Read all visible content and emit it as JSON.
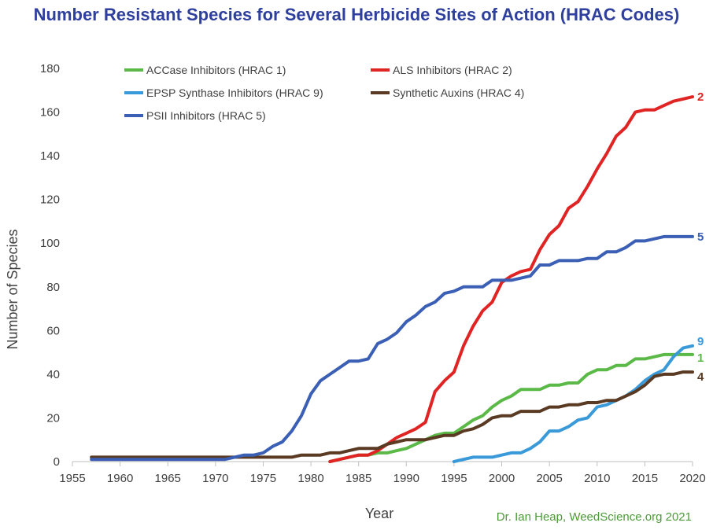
{
  "chart_data": {
    "type": "line",
    "title": "Number Resistant Species for Several Herbicide Sites of Action (HRAC Codes)",
    "xlabel": "Year",
    "ylabel": "Number of Species",
    "xlim": [
      1955,
      2020
    ],
    "ylim": [
      0,
      180
    ],
    "xticks": [
      1955,
      1960,
      1965,
      1970,
      1975,
      1980,
      1985,
      1990,
      1995,
      2000,
      2005,
      2010,
      2015,
      2020
    ],
    "yticks": [
      0,
      20,
      40,
      60,
      80,
      100,
      120,
      140,
      160,
      180
    ],
    "grid": false,
    "legend_position": "top",
    "credit": "Dr. Ian Heap, WeedScience.org 2021",
    "series": [
      {
        "name": "ACCase Inhibitors (HRAC 1)",
        "end_label": "1",
        "color": "#5ab947",
        "points": [
          [
            1982,
            0
          ],
          [
            1983,
            1
          ],
          [
            1984,
            2
          ],
          [
            1985,
            3
          ],
          [
            1986,
            3
          ],
          [
            1987,
            4
          ],
          [
            1988,
            4
          ],
          [
            1989,
            5
          ],
          [
            1990,
            6
          ],
          [
            1991,
            8
          ],
          [
            1992,
            10
          ],
          [
            1993,
            12
          ],
          [
            1994,
            13
          ],
          [
            1995,
            13
          ],
          [
            1996,
            16
          ],
          [
            1997,
            19
          ],
          [
            1998,
            21
          ],
          [
            1999,
            25
          ],
          [
            2000,
            28
          ],
          [
            2001,
            30
          ],
          [
            2002,
            33
          ],
          [
            2003,
            33
          ],
          [
            2004,
            33
          ],
          [
            2005,
            35
          ],
          [
            2006,
            35
          ],
          [
            2007,
            36
          ],
          [
            2008,
            36
          ],
          [
            2009,
            40
          ],
          [
            2010,
            42
          ],
          [
            2011,
            42
          ],
          [
            2012,
            44
          ],
          [
            2013,
            44
          ],
          [
            2014,
            47
          ],
          [
            2015,
            47
          ],
          [
            2016,
            48
          ],
          [
            2017,
            49
          ],
          [
            2018,
            49
          ],
          [
            2019,
            49
          ],
          [
            2020,
            49
          ]
        ]
      },
      {
        "name": "ALS Inhibitors (HRAC 2)",
        "end_label": "2",
        "color": "#e02424",
        "points": [
          [
            1982,
            0
          ],
          [
            1983,
            1
          ],
          [
            1984,
            2
          ],
          [
            1985,
            3
          ],
          [
            1986,
            3
          ],
          [
            1987,
            5
          ],
          [
            1988,
            8
          ],
          [
            1989,
            11
          ],
          [
            1990,
            13
          ],
          [
            1991,
            15
          ],
          [
            1992,
            18
          ],
          [
            1993,
            32
          ],
          [
            1994,
            37
          ],
          [
            1995,
            41
          ],
          [
            1996,
            53
          ],
          [
            1997,
            62
          ],
          [
            1998,
            69
          ],
          [
            1999,
            73
          ],
          [
            2000,
            82
          ],
          [
            2001,
            85
          ],
          [
            2002,
            87
          ],
          [
            2003,
            88
          ],
          [
            2004,
            97
          ],
          [
            2005,
            104
          ],
          [
            2006,
            108
          ],
          [
            2007,
            116
          ],
          [
            2008,
            119
          ],
          [
            2009,
            126
          ],
          [
            2010,
            134
          ],
          [
            2011,
            141
          ],
          [
            2012,
            149
          ],
          [
            2013,
            153
          ],
          [
            2014,
            160
          ],
          [
            2015,
            161
          ],
          [
            2016,
            161
          ],
          [
            2017,
            163
          ],
          [
            2018,
            165
          ],
          [
            2019,
            166
          ],
          [
            2020,
            167
          ]
        ]
      },
      {
        "name": "EPSP Synthase Inhibitors (HRAC 9)",
        "end_label": "9",
        "color": "#3a9ad9",
        "points": [
          [
            1995,
            0
          ],
          [
            1996,
            1
          ],
          [
            1997,
            2
          ],
          [
            1998,
            2
          ],
          [
            1999,
            2
          ],
          [
            2000,
            3
          ],
          [
            2001,
            4
          ],
          [
            2002,
            4
          ],
          [
            2003,
            6
          ],
          [
            2004,
            9
          ],
          [
            2005,
            14
          ],
          [
            2006,
            14
          ],
          [
            2007,
            16
          ],
          [
            2008,
            19
          ],
          [
            2009,
            20
          ],
          [
            2010,
            25
          ],
          [
            2011,
            26
          ],
          [
            2012,
            28
          ],
          [
            2013,
            30
          ],
          [
            2014,
            33
          ],
          [
            2015,
            37
          ],
          [
            2016,
            40
          ],
          [
            2017,
            42
          ],
          [
            2018,
            48
          ],
          [
            2019,
            52
          ],
          [
            2020,
            53
          ]
        ]
      },
      {
        "name": "Synthetic Auxins (HRAC 4)",
        "end_label": "4",
        "color": "#5a3a22",
        "points": [
          [
            1957,
            2
          ],
          [
            1960,
            2
          ],
          [
            1965,
            2
          ],
          [
            1970,
            2
          ],
          [
            1975,
            2
          ],
          [
            1978,
            2
          ],
          [
            1979,
            3
          ],
          [
            1980,
            3
          ],
          [
            1981,
            3
          ],
          [
            1982,
            4
          ],
          [
            1983,
            4
          ],
          [
            1984,
            5
          ],
          [
            1985,
            6
          ],
          [
            1986,
            6
          ],
          [
            1987,
            6
          ],
          [
            1988,
            8
          ],
          [
            1989,
            9
          ],
          [
            1990,
            10
          ],
          [
            1991,
            10
          ],
          [
            1992,
            10
          ],
          [
            1993,
            11
          ],
          [
            1994,
            12
          ],
          [
            1995,
            12
          ],
          [
            1996,
            14
          ],
          [
            1997,
            15
          ],
          [
            1998,
            17
          ],
          [
            1999,
            20
          ],
          [
            2000,
            21
          ],
          [
            2001,
            21
          ],
          [
            2002,
            23
          ],
          [
            2003,
            23
          ],
          [
            2004,
            23
          ],
          [
            2005,
            25
          ],
          [
            2006,
            25
          ],
          [
            2007,
            26
          ],
          [
            2008,
            26
          ],
          [
            2009,
            27
          ],
          [
            2010,
            27
          ],
          [
            2011,
            28
          ],
          [
            2012,
            28
          ],
          [
            2013,
            30
          ],
          [
            2014,
            32
          ],
          [
            2015,
            35
          ],
          [
            2016,
            39
          ],
          [
            2017,
            40
          ],
          [
            2018,
            40
          ],
          [
            2019,
            41
          ],
          [
            2020,
            41
          ]
        ]
      },
      {
        "name": "PSII Inhibitors (HRAC 5)",
        "end_label": "5",
        "color": "#3a5fb4",
        "points": [
          [
            1957,
            1
          ],
          [
            1965,
            1
          ],
          [
            1970,
            1
          ],
          [
            1971,
            1
          ],
          [
            1972,
            2
          ],
          [
            1973,
            3
          ],
          [
            1974,
            3
          ],
          [
            1975,
            4
          ],
          [
            1976,
            7
          ],
          [
            1977,
            9
          ],
          [
            1978,
            14
          ],
          [
            1979,
            21
          ],
          [
            1980,
            31
          ],
          [
            1981,
            37
          ],
          [
            1982,
            40
          ],
          [
            1983,
            43
          ],
          [
            1984,
            46
          ],
          [
            1985,
            46
          ],
          [
            1986,
            47
          ],
          [
            1987,
            54
          ],
          [
            1988,
            56
          ],
          [
            1989,
            59
          ],
          [
            1990,
            64
          ],
          [
            1991,
            67
          ],
          [
            1992,
            71
          ],
          [
            1993,
            73
          ],
          [
            1994,
            77
          ],
          [
            1995,
            78
          ],
          [
            1996,
            80
          ],
          [
            1997,
            80
          ],
          [
            1998,
            80
          ],
          [
            1999,
            83
          ],
          [
            2000,
            83
          ],
          [
            2001,
            83
          ],
          [
            2002,
            84
          ],
          [
            2003,
            85
          ],
          [
            2004,
            90
          ],
          [
            2005,
            90
          ],
          [
            2006,
            92
          ],
          [
            2007,
            92
          ],
          [
            2008,
            92
          ],
          [
            2009,
            93
          ],
          [
            2010,
            93
          ],
          [
            2011,
            96
          ],
          [
            2012,
            96
          ],
          [
            2013,
            98
          ],
          [
            2014,
            101
          ],
          [
            2015,
            101
          ],
          [
            2016,
            102
          ],
          [
            2017,
            103
          ],
          [
            2018,
            103
          ],
          [
            2019,
            103
          ],
          [
            2020,
            103
          ]
        ]
      }
    ]
  }
}
